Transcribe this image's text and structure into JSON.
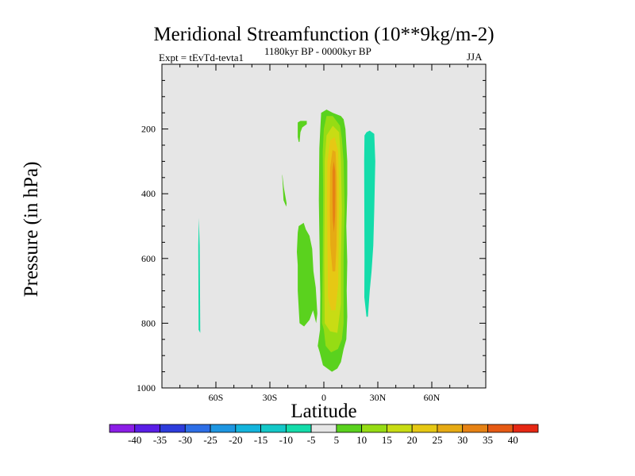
{
  "chart_data": {
    "type": "heatmap",
    "title": "Meridional Streamfunction (10**9kg/m-2)",
    "subtitle_left": "Expt = tEvTd-tevta1",
    "subtitle_center": "1180kyr BP - 0000kyr BP",
    "subtitle_right": "JJA",
    "xlabel": "Latitude",
    "ylabel": "Pressure (in hPa)",
    "xlim": [
      -90,
      90
    ],
    "ylim": [
      1000,
      0
    ],
    "x_ticks": [
      {
        "value": -60,
        "label": "60S"
      },
      {
        "value": -30,
        "label": "30S"
      },
      {
        "value": 0,
        "label": "0"
      },
      {
        "value": 30,
        "label": "30N"
      },
      {
        "value": 60,
        "label": "60N"
      }
    ],
    "y_ticks": [
      {
        "value": 200,
        "label": "200"
      },
      {
        "value": 400,
        "label": "400"
      },
      {
        "value": 600,
        "label": "600"
      },
      {
        "value": 800,
        "label": "800"
      },
      {
        "value": 1000,
        "label": "1000"
      }
    ],
    "background_color": "#e6e6e6",
    "colorbar": {
      "labels": [
        "-40",
        "-35",
        "-30",
        "-25",
        "-20",
        "-15",
        "-10",
        "-5",
        "5",
        "10",
        "15",
        "20",
        "25",
        "30",
        "35",
        "40"
      ],
      "colors": [
        "#8b1ee6",
        "#5a1ee6",
        "#2d3cdc",
        "#2d6ee6",
        "#1e96e1",
        "#14b4dc",
        "#14c8c8",
        "#14dcaa",
        "#e6e6e6",
        "#5ad21e",
        "#96dc14",
        "#c8dc14",
        "#e6c814",
        "#e6aa14",
        "#e68214",
        "#e65a14",
        "#e62814"
      ]
    },
    "regions": [
      {
        "level": -10,
        "color": "#14dcaa",
        "description": "narrow negative band near 70S",
        "poly": [
          [
            -69.5,
            475
          ],
          [
            -69,
            560
          ],
          [
            -68.7,
            830
          ],
          [
            -69.6,
            820
          ],
          [
            -69.8,
            560
          ]
        ]
      },
      {
        "level": -10,
        "color": "#14dcaa",
        "description": "negative cell north of equator",
        "poly": [
          [
            23.7,
            210
          ],
          [
            25.5,
            205
          ],
          [
            28,
            215
          ],
          [
            28.6,
            300
          ],
          [
            28,
            450
          ],
          [
            27.5,
            560
          ],
          [
            26.5,
            640
          ],
          [
            25.5,
            700
          ],
          [
            24.5,
            780
          ],
          [
            23.7,
            780
          ],
          [
            22.5,
            720
          ],
          [
            22.6,
            600
          ],
          [
            22.4,
            300
          ],
          [
            22.6,
            220
          ]
        ]
      },
      {
        "level": 5,
        "color": "#5ad21e",
        "description": "small positive patch near 15S upper",
        "poly": [
          [
            -14.5,
            180
          ],
          [
            -13,
            175
          ],
          [
            -9.5,
            175
          ],
          [
            -9.5,
            185
          ],
          [
            -12,
            195
          ],
          [
            -13,
            210
          ],
          [
            -13.5,
            240
          ],
          [
            -14,
            240
          ],
          [
            -14.5,
            225
          ]
        ]
      },
      {
        "level": 5,
        "color": "#5ad21e",
        "description": "thin positive streak near 24S",
        "poly": [
          [
            -23.2,
            340
          ],
          [
            -23,
            360
          ],
          [
            -22.4,
            420
          ],
          [
            -20.9,
            440
          ],
          [
            -20.7,
            430
          ],
          [
            -22.3,
            380
          ],
          [
            -23,
            345
          ]
        ]
      },
      {
        "level": 5,
        "color": "#5ad21e",
        "description": "positive region 15S-0",
        "poly": [
          [
            -14,
            500
          ],
          [
            -11.2,
            490
          ],
          [
            -10,
            510
          ],
          [
            -8,
            530
          ],
          [
            -6.5,
            570
          ],
          [
            -5.8,
            640
          ],
          [
            -4.5,
            690
          ],
          [
            -3.6,
            770
          ],
          [
            -4.3,
            800
          ],
          [
            -6,
            760
          ],
          [
            -8,
            790
          ],
          [
            -11,
            810
          ],
          [
            -13.5,
            800
          ],
          [
            -14.5,
            700
          ],
          [
            -14.5,
            620
          ],
          [
            -15,
            580
          ],
          [
            -14.5,
            520
          ]
        ]
      },
      {
        "level": 5,
        "color": "#5ad21e",
        "description": "main positive cell",
        "poly": [
          [
            -2,
            710
          ],
          [
            -2.8,
            420
          ],
          [
            -2.5,
            260
          ],
          [
            -2,
            200
          ],
          [
            -1.5,
            150
          ],
          [
            1.5,
            140
          ],
          [
            5,
            150
          ],
          [
            9.5,
            160
          ],
          [
            11,
            170
          ],
          [
            12,
            200
          ],
          [
            13,
            300
          ],
          [
            13,
            400
          ],
          [
            12.5,
            500
          ],
          [
            13,
            610
          ],
          [
            12.7,
            700
          ],
          [
            13,
            780
          ],
          [
            12.5,
            850
          ],
          [
            11,
            880
          ],
          [
            9.5,
            920
          ],
          [
            7.5,
            940
          ],
          [
            4.5,
            950
          ],
          [
            2,
            940
          ],
          [
            -0.5,
            930
          ],
          [
            -2.3,
            890
          ],
          [
            -3.4,
            870
          ],
          [
            -2.1,
            820
          ]
        ]
      },
      {
        "level": 10,
        "color": "#96dc14",
        "poly": [
          [
            -0.6,
            270
          ],
          [
            0,
            200
          ],
          [
            1.5,
            160
          ],
          [
            5,
            160
          ],
          [
            9,
            190
          ],
          [
            10,
            230
          ],
          [
            11,
            300
          ],
          [
            11.5,
            450
          ],
          [
            11,
            600
          ],
          [
            11,
            720
          ],
          [
            11,
            800
          ],
          [
            10,
            850
          ],
          [
            7.8,
            880
          ],
          [
            4,
            890
          ],
          [
            1,
            870
          ],
          [
            0,
            820
          ],
          [
            -1,
            800
          ],
          [
            -0.6,
            600
          ],
          [
            -0.4,
            400
          ]
        ]
      },
      {
        "level": 15,
        "color": "#c8dc14",
        "poly": [
          [
            0.5,
            300
          ],
          [
            1.5,
            220
          ],
          [
            5,
            190
          ],
          [
            8.5,
            210
          ],
          [
            9.5,
            300
          ],
          [
            10,
            450
          ],
          [
            9.5,
            600
          ],
          [
            9.5,
            740
          ],
          [
            7.5,
            830
          ],
          [
            3.5,
            825
          ],
          [
            0.5,
            800
          ],
          [
            0.2,
            600
          ],
          [
            0.5,
            400
          ]
        ]
      },
      {
        "level": 20,
        "color": "#e6c814",
        "poly": [
          [
            2,
            300
          ],
          [
            3.5,
            235
          ],
          [
            6,
            225
          ],
          [
            8,
            270
          ],
          [
            8.5,
            400
          ],
          [
            8.2,
            550
          ],
          [
            8,
            680
          ],
          [
            6.5,
            760
          ],
          [
            4,
            760
          ],
          [
            2.3,
            720
          ],
          [
            2,
            550
          ],
          [
            1.8,
            400
          ]
        ]
      },
      {
        "level": 25,
        "color": "#e6aa14",
        "poly": [
          [
            3.5,
            320
          ],
          [
            4.8,
            265
          ],
          [
            6.5,
            270
          ],
          [
            7.2,
            350
          ],
          [
            7.3,
            450
          ],
          [
            7,
            560
          ],
          [
            6.3,
            640
          ],
          [
            4.8,
            640
          ],
          [
            3.6,
            560
          ],
          [
            3.3,
            450
          ]
        ]
      },
      {
        "level": 30,
        "color": "#e68214",
        "poly": [
          [
            4.8,
            330
          ],
          [
            5.5,
            300
          ],
          [
            6.3,
            330
          ],
          [
            6.4,
            400
          ],
          [
            6.2,
            470
          ],
          [
            5.6,
            520
          ],
          [
            5,
            480
          ],
          [
            4.8,
            420
          ]
        ]
      }
    ]
  }
}
